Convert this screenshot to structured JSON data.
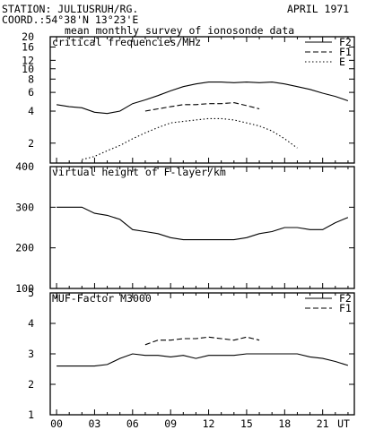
{
  "header": {
    "station_line": "STATION: JULIUSRUH/RG.",
    "coord_line": "COORD.:54°38'N 13°23'E",
    "date": "APRIL 1971",
    "subtitle": "mean monthly survey of ionosonde data"
  },
  "x_axis": {
    "ticks": [
      0,
      3,
      6,
      9,
      12,
      15,
      18,
      21
    ],
    "tick_labels": [
      "00",
      "03",
      "06",
      "09",
      "12",
      "15",
      "18",
      "21"
    ],
    "unit_label": "UT"
  },
  "chart_data": [
    {
      "type": "line",
      "title": "critical frequencies/MHz",
      "y_scale": "log",
      "ylim": [
        1.3,
        20
      ],
      "yticks": [
        2,
        4,
        6,
        8,
        10,
        12,
        16,
        20
      ],
      "xlim": [
        -0.5,
        23.5
      ],
      "legend_position": "top-right",
      "series": [
        {
          "name": "F2",
          "style": "solid",
          "x": [
            0,
            1,
            2,
            3,
            4,
            5,
            6,
            7,
            8,
            9,
            10,
            11,
            12,
            13,
            14,
            15,
            16,
            17,
            18,
            19,
            20,
            21,
            22,
            23
          ],
          "values": [
            4.6,
            4.4,
            4.3,
            3.9,
            3.8,
            4.0,
            4.7,
            5.1,
            5.6,
            6.2,
            6.8,
            7.2,
            7.5,
            7.5,
            7.4,
            7.5,
            7.4,
            7.5,
            7.2,
            6.8,
            6.4,
            5.9,
            5.5,
            5.0
          ]
        },
        {
          "name": "F1",
          "style": "dashed",
          "x": [
            7,
            8,
            9,
            10,
            11,
            12,
            13,
            14,
            15,
            16
          ],
          "values": [
            4.0,
            4.2,
            4.4,
            4.6,
            4.6,
            4.7,
            4.7,
            4.8,
            4.5,
            4.2
          ]
        },
        {
          "name": "E",
          "style": "dotted",
          "x": [
            2,
            3,
            4,
            5,
            6,
            7,
            8,
            9,
            10,
            11,
            12,
            13,
            14,
            15,
            16,
            17,
            18,
            19
          ],
          "values": [
            1.4,
            1.5,
            1.7,
            1.9,
            2.2,
            2.5,
            2.8,
            3.1,
            3.2,
            3.3,
            3.4,
            3.4,
            3.3,
            3.1,
            2.9,
            2.6,
            2.2,
            1.8
          ]
        }
      ]
    },
    {
      "type": "line",
      "title": "virtual height of F-layer/km",
      "ylim": [
        100,
        400
      ],
      "yticks": [
        100,
        200,
        300,
        400
      ],
      "xlim": [
        -0.5,
        23.5
      ],
      "series": [
        {
          "style": "solid",
          "x": [
            0,
            1,
            2,
            3,
            4,
            5,
            6,
            7,
            8,
            9,
            10,
            11,
            12,
            13,
            14,
            15,
            16,
            17,
            18,
            19,
            20,
            21,
            22,
            23
          ],
          "values": [
            300,
            300,
            300,
            285,
            280,
            270,
            245,
            240,
            235,
            225,
            220,
            220,
            220,
            220,
            220,
            225,
            235,
            240,
            250,
            250,
            245,
            245,
            262,
            275
          ]
        }
      ]
    },
    {
      "type": "line",
      "title": "MUF-Factor M3000",
      "ylim": [
        1,
        5
      ],
      "yticks": [
        1,
        2,
        3,
        4,
        5
      ],
      "xlim": [
        -0.5,
        23.5
      ],
      "legend_position": "top-right",
      "series": [
        {
          "name": "F2",
          "style": "solid",
          "x": [
            0,
            1,
            2,
            3,
            4,
            5,
            6,
            7,
            8,
            9,
            10,
            11,
            12,
            13,
            14,
            15,
            16,
            17,
            18,
            19,
            20,
            21,
            22,
            23
          ],
          "values": [
            2.6,
            2.6,
            2.6,
            2.6,
            2.65,
            2.85,
            3.0,
            2.95,
            2.95,
            2.9,
            2.95,
            2.85,
            2.95,
            2.95,
            2.95,
            3.0,
            3.0,
            3.0,
            3.0,
            3.0,
            2.9,
            2.85,
            2.75,
            2.62
          ]
        },
        {
          "name": "F1",
          "style": "dashed",
          "x": [
            7,
            8,
            9,
            10,
            11,
            12,
            13,
            14,
            15,
            16
          ],
          "values": [
            3.3,
            3.45,
            3.45,
            3.5,
            3.5,
            3.55,
            3.5,
            3.45,
            3.55,
            3.45
          ]
        }
      ]
    }
  ]
}
